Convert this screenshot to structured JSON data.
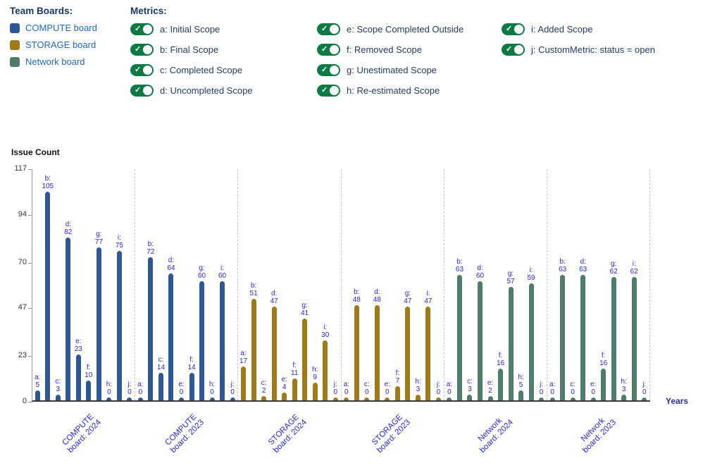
{
  "colors": {
    "legend_blue": "#1e6ac1",
    "chart_label_blue": "#2727d8",
    "metric_text_navy": "#1e3a5f",
    "heading_navy": "#17365d",
    "toggle_green": "#0c7b43",
    "compute_blue": "#2d5796",
    "storage_gold": "#9e7b18",
    "network_green": "#4f7d6d"
  },
  "team_boards": {
    "heading": "Team Boards:",
    "items": [
      {
        "label": "COMPUTE board",
        "color": "#2d5796"
      },
      {
        "label": "STORAGE board",
        "color": "#9e7b18"
      },
      {
        "label": "Network board",
        "color": "#4f7d6d"
      }
    ]
  },
  "metrics": {
    "heading": "Metrics:",
    "toggle_color": "#0c7b43",
    "toggle_state": "on",
    "check_glyph": "✓",
    "columns": [
      [
        {
          "label": "a: Initial Scope"
        },
        {
          "label": "b: Final Scope"
        },
        {
          "label": "c: Completed Scope"
        },
        {
          "label": "d: Uncompleted Scope"
        }
      ],
      [
        {
          "label": "e: Scope Completed Outside"
        },
        {
          "label": "f: Removed Scope"
        },
        {
          "label": "g: Unestimated Scope"
        },
        {
          "label": "h: Re-estimated Scope"
        }
      ],
      [
        {
          "label": "i: Added Scope"
        },
        {
          "label": "j: CustomMetric: status = open"
        }
      ]
    ]
  },
  "chart_data": {
    "type": "bar",
    "title": "",
    "ylabel": "Issue Count",
    "xlabel": "Years",
    "ylim": [
      0,
      117
    ],
    "yticks": [
      0,
      23,
      47,
      70,
      94,
      117
    ],
    "grid": "dashed vertical separators between groups, no horizontal gridlines",
    "legend_position": "top-left (Team Boards)",
    "metric_keys": [
      "a",
      "b",
      "c",
      "d",
      "e",
      "f",
      "g",
      "h",
      "i",
      "j"
    ],
    "groups": [
      {
        "label_line1": "COMPUTE",
        "label_line2": "board: 2024",
        "color": "#2d5796",
        "values": {
          "a": 5,
          "b": 105,
          "c": 3,
          "d": 82,
          "e": 23,
          "f": 10,
          "g": 77,
          "h": 0,
          "i": 75,
          "j": 0
        }
      },
      {
        "label_line1": "COMPUTE",
        "label_line2": "board: 2023",
        "color": "#2d5796",
        "values": {
          "a": 0,
          "b": 72,
          "c": 14,
          "d": 64,
          "e": 0,
          "f": 14,
          "g": 60,
          "h": 0,
          "i": 60,
          "j": 0
        }
      },
      {
        "label_line1": "STORAGE",
        "label_line2": "board: 2024",
        "color": "#9e7b18",
        "values": {
          "a": 17,
          "b": 51,
          "c": 2,
          "d": 47,
          "e": 4,
          "f": 11,
          "g": 41,
          "h": 9,
          "i": 30,
          "j": 0
        }
      },
      {
        "label_line1": "STORAGE",
        "label_line2": "board: 2023",
        "color": "#9e7b18",
        "values": {
          "a": 0,
          "b": 48,
          "c": 0,
          "d": 48,
          "e": 0,
          "f": 7,
          "g": 47,
          "h": 3,
          "i": 47,
          "j": 0
        }
      },
      {
        "label_line1": "Network",
        "label_line2": "board: 2024",
        "color": "#4f7d6d",
        "values": {
          "a": 0,
          "b": 63,
          "c": 3,
          "d": 60,
          "e": 2,
          "f": 16,
          "g": 57,
          "h": 5,
          "i": 59,
          "j": 0
        }
      },
      {
        "label_line1": "Network",
        "label_line2": "board: 2023",
        "color": "#4f7d6d",
        "values": {
          "a": 0,
          "b": 63,
          "c": 0,
          "d": 63,
          "e": 0,
          "f": 16,
          "g": 62,
          "h": 3,
          "i": 62,
          "j": 0
        }
      }
    ]
  }
}
